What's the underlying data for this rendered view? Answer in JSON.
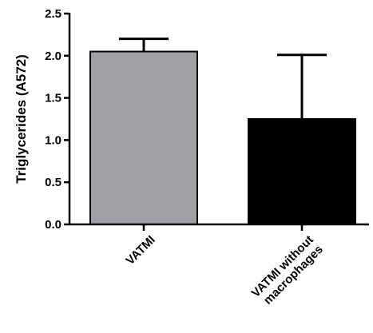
{
  "chart_data": {
    "type": "bar",
    "ylabel": "Triglycerides  (A572)",
    "xlabel": "",
    "title": "",
    "ylim": [
      0,
      2.5
    ],
    "yticks": [
      "0.0",
      "0.5",
      "1.0",
      "1.5",
      "2.0",
      "2.5"
    ],
    "grid": false,
    "categories": [
      {
        "lines": [
          "VATMI"
        ]
      },
      {
        "lines": [
          "VATMI without",
          "macrophages"
        ]
      }
    ],
    "values": [
      2.05,
      1.25
    ],
    "error_upper": [
      2.2,
      2.01
    ],
    "bar_colors": [
      "#a0a0a4",
      "#000000"
    ]
  }
}
